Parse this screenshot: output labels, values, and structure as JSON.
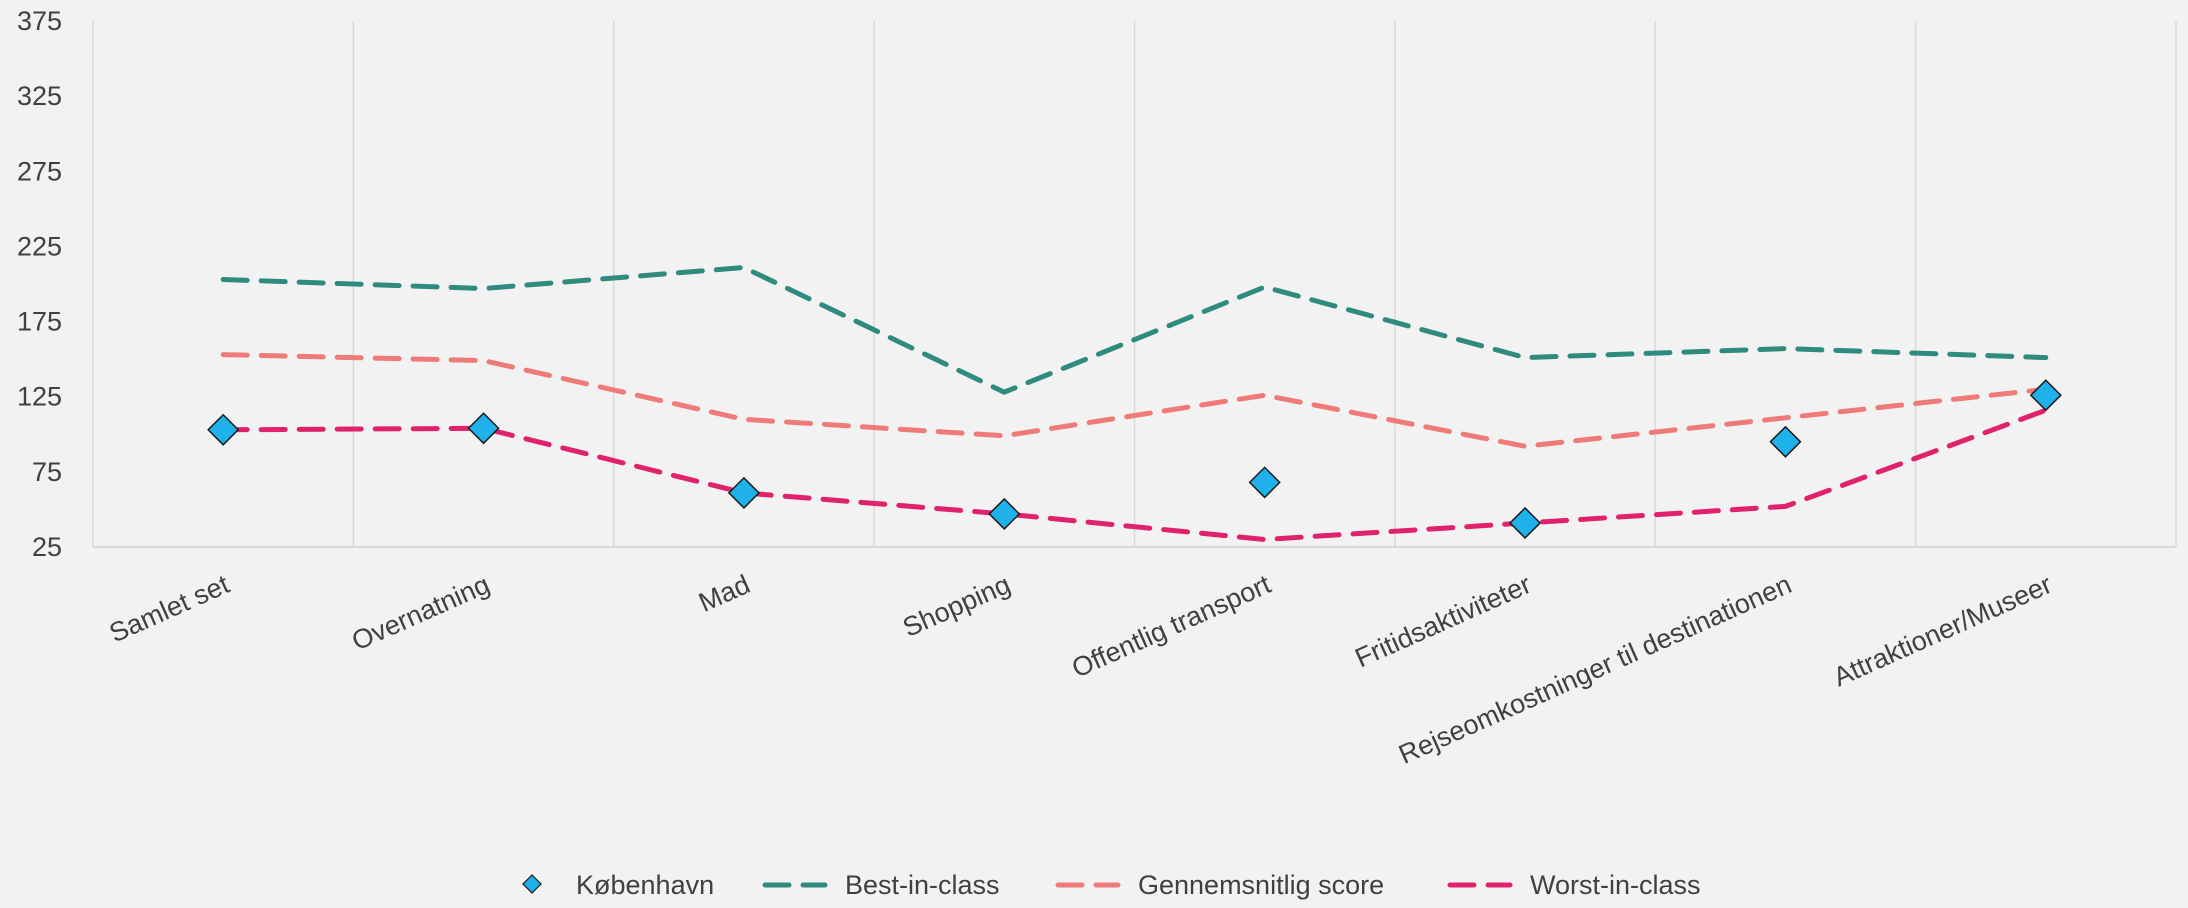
{
  "chart_data": {
    "type": "line",
    "categories": [
      "Samlet set",
      "Overnatning",
      "Mad",
      "Shopping",
      "Offentlig transport",
      "Fritidsaktiviteter",
      "Rejseomkostninger til destinationen",
      "Attraktioner/Museer"
    ],
    "ylim": [
      25,
      375
    ],
    "yticks": [
      25,
      75,
      125,
      175,
      225,
      275,
      325,
      375
    ],
    "grid": "vertical",
    "legend_position": "bottom",
    "series": [
      {
        "name": "København",
        "style": "markers",
        "marker": "diamond",
        "color": "#1fb1ea",
        "values": [
          103,
          104,
          61,
          47,
          68,
          41,
          95,
          126
        ]
      },
      {
        "name": "Best-in-class",
        "style": "dashed-line",
        "color": "#2e8b7e",
        "values": [
          203,
          197,
          211,
          128,
          198,
          151,
          157,
          151
        ]
      },
      {
        "name": "Gennemsnitlig score",
        "style": "dashed-line",
        "color": "#ef7b78",
        "values": [
          153,
          149,
          110,
          99,
          126,
          92,
          111,
          130
        ]
      },
      {
        "name": "Worst-in-class",
        "style": "dashed-line",
        "color": "#e0216b",
        "values": [
          103,
          104,
          61,
          47,
          30,
          41,
          52,
          116
        ]
      }
    ]
  }
}
